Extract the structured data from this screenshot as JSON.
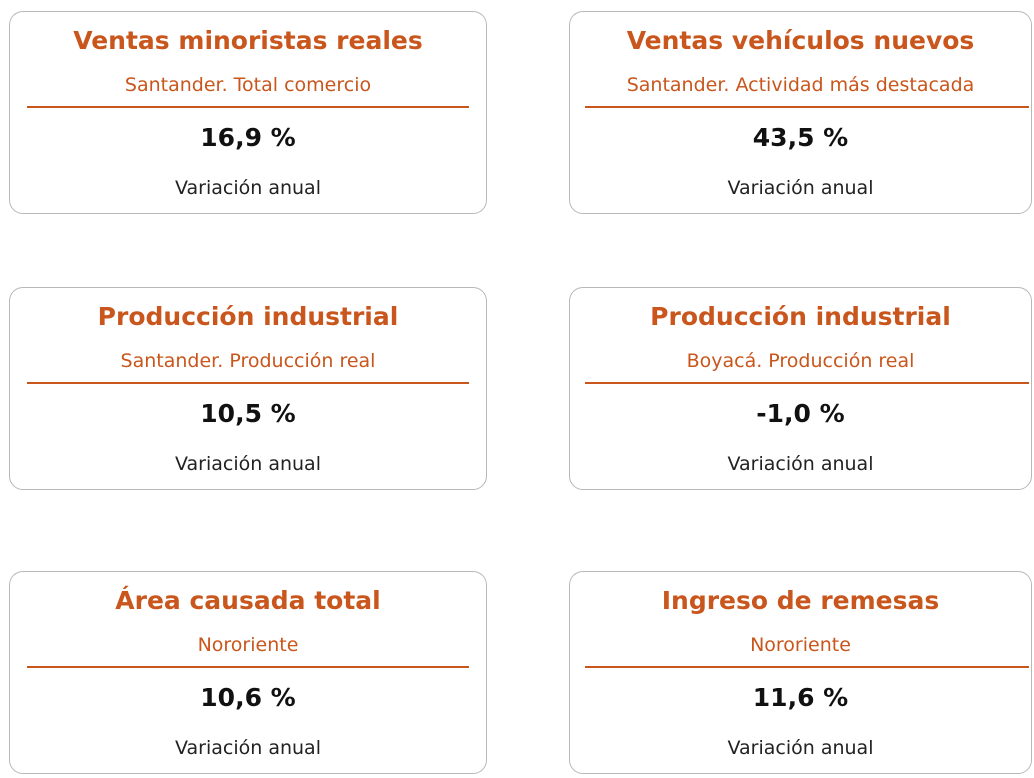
{
  "cards": [
    {
      "title": "Ventas minoristas reales",
      "subtitle": "Santander. Total comercio",
      "value": "16,9 %",
      "label": "Variación anual"
    },
    {
      "title": "Ventas vehículos nuevos",
      "subtitle": "Santander. Actividad más destacada",
      "value": "43,5 %",
      "label": "Variación anual"
    },
    {
      "title": "Producción industrial",
      "subtitle": "Santander. Producción real",
      "value": "10,5 %",
      "label": "Variación anual"
    },
    {
      "title": "Producción industrial",
      "subtitle": "Boyacá. Producción real",
      "value": "-1,0 %",
      "label": "Variación anual"
    },
    {
      "title": "Área causada total",
      "subtitle": "Nororiente",
      "value": "10,6 %",
      "label": "Variación anual"
    },
    {
      "title": "Ingreso de remesas",
      "subtitle": "Nororiente",
      "value": "11,6 %",
      "label": "Variación anual"
    }
  ]
}
